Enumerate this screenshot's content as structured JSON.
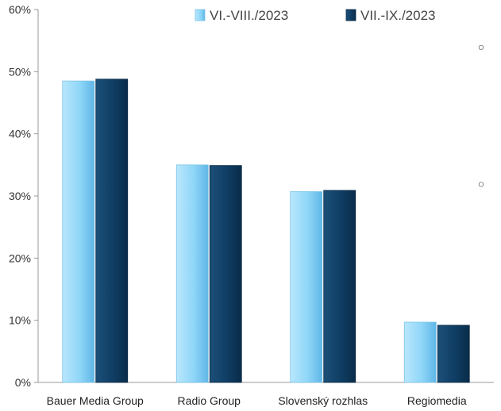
{
  "chart_data": {
    "type": "bar",
    "categories": [
      "Bauer Media Group",
      "Radio Group",
      "Slovenský rozhlas",
      "Regiomedia"
    ],
    "series": [
      {
        "name": "VI.-VIII./2023",
        "values": [
          48.5,
          35.0,
          30.7,
          9.7
        ],
        "color": "#8fd6f8"
      },
      {
        "name": "VII.-IX./2023",
        "values": [
          48.8,
          34.9,
          30.9,
          9.2
        ],
        "color": "#0f3d63"
      }
    ],
    "y_ticks": [
      "0%",
      "10%",
      "20%",
      "30%",
      "40%",
      "50%",
      "60%"
    ],
    "ylim": [
      0,
      60
    ],
    "title": "",
    "xlabel": "",
    "ylabel": "",
    "grid": false,
    "legend_position": "top-right",
    "markers": [
      {
        "label": "○",
        "value": 54
      },
      {
        "label": "○",
        "value": 32
      }
    ]
  }
}
